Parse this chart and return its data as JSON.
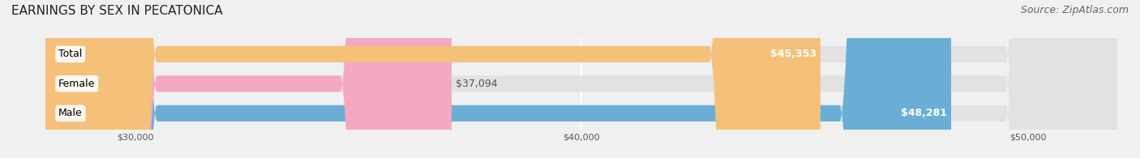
{
  "title": "EARNINGS BY SEX IN PECATONICA",
  "source": "Source: ZipAtlas.com",
  "categories": [
    "Male",
    "Female",
    "Total"
  ],
  "values": [
    48281,
    37094,
    45353
  ],
  "colors": [
    "#6aaed6",
    "#f4a9c0",
    "#f5c07a"
  ],
  "bar_labels": [
    "$48,281",
    "$37,094",
    "$45,353"
  ],
  "label_inside": [
    true,
    false,
    true
  ],
  "xlim_min": 28000,
  "xlim_max": 52000,
  "xticks": [
    30000,
    40000,
    50000
  ],
  "xtick_labels": [
    "$30,000",
    "$40,000",
    "$50,000"
  ],
  "background_color": "#f0f0f0",
  "bar_background_color": "#e2e2e2",
  "title_fontsize": 11,
  "source_fontsize": 9,
  "bar_height": 0.55,
  "label_fontsize": 9,
  "category_fontsize": 9
}
